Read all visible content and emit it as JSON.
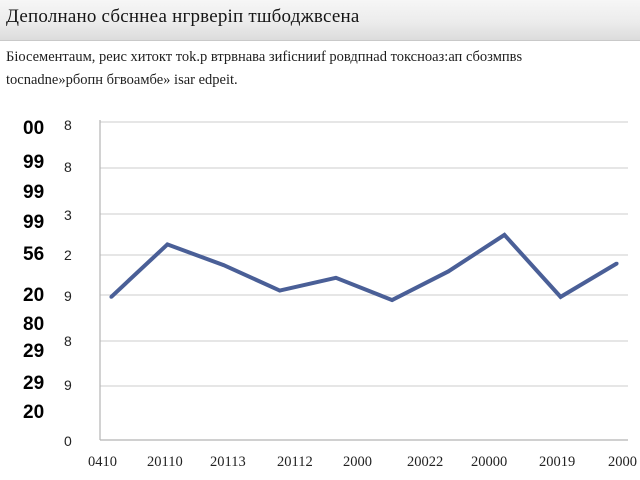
{
  "chart_data": {
    "type": "line",
    "title": "Деполнано сбсннеа нгрверіп тшбоджвсена",
    "subtitle_lines": [
      "Біосементаuм, реис хитокт тоk.р втрвнава зиfiснииf ровдпнаd  токсноаз:ап сбозмпвs",
      "tocnadne»pбопн бгвоамбе» isаr edpeit."
    ],
    "outer_y_ticks": [
      "00",
      "99",
      "99",
      "99",
      "56",
      "20",
      "80",
      "29",
      "29",
      "20"
    ],
    "inner_y_ticks": [
      "8",
      "8",
      "3",
      "2",
      "9",
      "8",
      "9",
      "0"
    ],
    "x_ticks": [
      "0410",
      "20110",
      "20113",
      "20112",
      "2000",
      "20022",
      "20000",
      "20019",
      "2000"
    ],
    "x": [
      1,
      2,
      3,
      4,
      5,
      6,
      7,
      8,
      9,
      10
    ],
    "series": [
      {
        "values": [
          9.0,
          12.3,
          11.0,
          9.4,
          10.2,
          8.8,
          10.6,
          12.9,
          9.0,
          11.1
        ]
      }
    ],
    "xlim": [
      0.8,
      10.2
    ],
    "ylim": [
      0,
      20
    ],
    "grid": true,
    "line_color": "#4a5f97",
    "grid_color": "#d6d6d6",
    "axis_color": "#b5b5b5"
  }
}
